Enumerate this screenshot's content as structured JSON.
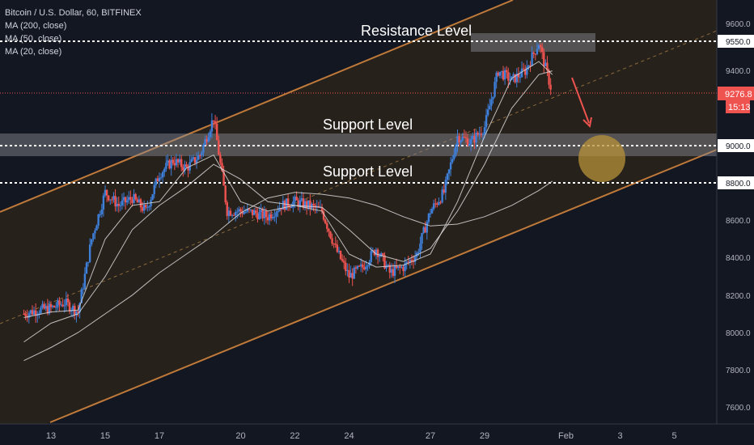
{
  "legend": {
    "symbol": "Bitcoin / U.S. Dollar, 60, BITFINEX",
    "ma1": "MA (200, close)",
    "ma2": "MA (50, close)",
    "ma3": "MA (20, close)"
  },
  "annotations": {
    "resistance": "Resistance Level",
    "support_upper": "Support Level",
    "support_lower": "Support Level"
  },
  "price_axis": {
    "ticks": [
      "9600.0",
      "9550.0",
      "9400.0",
      "9000.0",
      "8800.0",
      "8600.0",
      "8400.0",
      "8200.0",
      "8000.0",
      "7800.0",
      "7600.0"
    ],
    "last_price": "9276.8",
    "countdown": "15:13"
  },
  "time_axis": {
    "ticks": [
      "13",
      "15",
      "17",
      "20",
      "22",
      "24",
      "27",
      "29",
      "Feb",
      "3",
      "5"
    ]
  },
  "colors": {
    "background": "#131722",
    "up": "#3d7fd9",
    "down": "#ef5350",
    "channel": "#c07a3a",
    "ma": "#d9d9d9",
    "target_circle": "#b8923a",
    "last_price_label": "#ef5350"
  },
  "chart_data": {
    "type": "line",
    "title": "Bitcoin / U.S. Dollar, 60, BITFINEX",
    "xlabel": "",
    "ylabel": "",
    "ylim": [
      7500,
      9700
    ],
    "grid": false,
    "legend_position": "top-left",
    "x_ticks": [
      "13",
      "15",
      "17",
      "20",
      "22",
      "24",
      "27",
      "29",
      "Feb",
      "3",
      "5"
    ],
    "y_ticks": [
      7600,
      7800,
      8000,
      8200,
      8400,
      8600,
      8800,
      9000,
      9400,
      9550,
      9600
    ],
    "horizontal_levels": [
      {
        "label": "Resistance Level",
        "value": 9550
      },
      {
        "label": "Support Level",
        "value": 9000
      },
      {
        "label": "Support Level",
        "value": 8800
      }
    ],
    "last_price": 9276.8,
    "series": [
      {
        "name": "Bitcoin / U.S. Dollar, 60, BITFINEX",
        "x": [
          "12",
          "12.5",
          "13",
          "13.5",
          "14",
          "14.5",
          "15",
          "15.5",
          "16",
          "16.5",
          "17",
          "17.5",
          "18",
          "18.5",
          "19",
          "19.5",
          "20",
          "20.5",
          "21",
          "21.5",
          "22",
          "22.5",
          "23",
          "23.5",
          "24",
          "24.5",
          "25",
          "25.5",
          "26",
          "26.5",
          "27",
          "27.5",
          "28",
          "28.5",
          "29",
          "29.5",
          "30",
          "30.5",
          "31",
          "31.5"
        ],
        "values": [
          8100,
          8120,
          8130,
          8160,
          8110,
          8500,
          8750,
          8680,
          8720,
          8650,
          8850,
          8920,
          8880,
          8950,
          9150,
          8650,
          8650,
          8640,
          8620,
          8680,
          8700,
          8680,
          8650,
          8450,
          8300,
          8350,
          8450,
          8320,
          8350,
          8420,
          8650,
          8750,
          9050,
          9020,
          9100,
          9400,
          9350,
          9400,
          9550,
          9280
        ]
      },
      {
        "name": "MA (200, close)",
        "x": [
          "12",
          "13",
          "14",
          "15",
          "16",
          "17",
          "18",
          "19",
          "20",
          "21",
          "22",
          "23",
          "24",
          "25",
          "26",
          "27",
          "28",
          "29",
          "30",
          "31",
          "31.5"
        ],
        "values": [
          7850,
          7920,
          8000,
          8100,
          8200,
          8320,
          8420,
          8520,
          8640,
          8720,
          8750,
          8740,
          8720,
          8680,
          8620,
          8570,
          8580,
          8620,
          8680,
          8760,
          8810
        ]
      },
      {
        "name": "MA (50, close)",
        "x": [
          "12",
          "13",
          "14",
          "15",
          "16",
          "17",
          "18",
          "19",
          "20",
          "21",
          "22",
          "23",
          "24",
          "25",
          "26",
          "27",
          "28",
          "29",
          "30",
          "31",
          "31.5"
        ],
        "values": [
          7950,
          8050,
          8100,
          8300,
          8550,
          8680,
          8780,
          8900,
          8820,
          8700,
          8680,
          8670,
          8550,
          8420,
          8380,
          8450,
          8650,
          8900,
          9200,
          9380,
          9400
        ]
      },
      {
        "name": "MA (20, close)",
        "x": [
          "12",
          "13",
          "14",
          "15",
          "16",
          "17",
          "18",
          "19",
          "20",
          "21",
          "22",
          "23",
          "24",
          "25",
          "26",
          "27",
          "28",
          "29",
          "30",
          "31",
          "31.5"
        ],
        "values": [
          8080,
          8110,
          8120,
          8500,
          8680,
          8700,
          8880,
          8950,
          8700,
          8650,
          8680,
          8650,
          8420,
          8350,
          8360,
          8420,
          8700,
          9050,
          9360,
          9450,
          9380
        ]
      }
    ]
  }
}
